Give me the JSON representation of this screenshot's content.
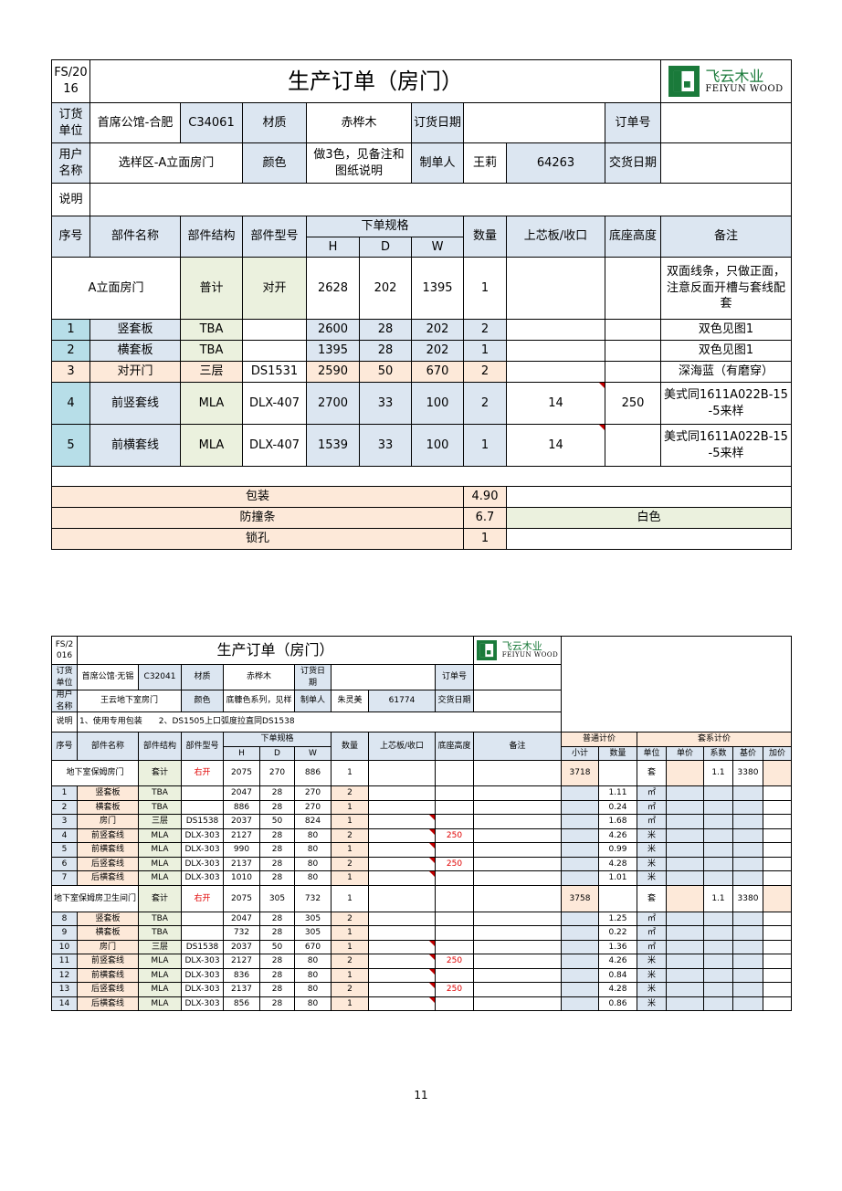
{
  "doc1": {
    "form_no": "FS/2016",
    "title": "生产订单（房门）",
    "logo": {
      "cn": "飞云木业",
      "en": "FEIYUN WOOD"
    },
    "info": {
      "customer_label": "订货单位",
      "customer": "首席公馆-合肥",
      "code": "C34061",
      "material_label": "材质",
      "material": "赤桦木",
      "order_date_label": "订货日期",
      "order_no_label": "订单号",
      "user_label": "用户名称",
      "user": "选样区-A立面房门",
      "color_label": "颜色",
      "color": "做3色，见备注和图纸说明",
      "maker_label": "制单人",
      "maker": "王莉",
      "maker_id": "64263",
      "delivery_label": "交货日期",
      "note_label": "说明"
    },
    "headers": {
      "seq": "序号",
      "part": "部件名称",
      "structure": "部件结构",
      "model": "部件型号",
      "spec": "下单规格",
      "h": "H",
      "d": "D",
      "w": "W",
      "qty": "数量",
      "core": "上芯板/收口",
      "base": "底座高度",
      "remark": "备注"
    },
    "main": {
      "name": "A立面房门",
      "structure": "普计",
      "model": "对开",
      "h": 2628,
      "d": 202,
      "w": 1395,
      "qty": 1,
      "remark": "双面线条，只做正面，注意反面开槽与套线配套"
    },
    "items": [
      {
        "seq": 1,
        "name": "竖套板",
        "structure": "TBA",
        "h": 2600,
        "d": 28,
        "w": 202,
        "qty": 2,
        "remark": "双色见图1"
      },
      {
        "seq": 2,
        "name": "横套板",
        "structure": "TBA",
        "h": 1395,
        "d": 28,
        "w": 202,
        "qty": 1,
        "remark": "双色见图1"
      },
      {
        "seq": 3,
        "name": "对开门",
        "structure": "三层",
        "model": "DS1531",
        "h": 2590,
        "d": 50,
        "w": 670,
        "qty": 2,
        "remark": "深海蓝（有磨穿）"
      },
      {
        "seq": 4,
        "name": "前竖套线",
        "structure": "MLA",
        "model": "DLX-407",
        "h": 2700,
        "d": 33,
        "w": 100,
        "qty": 2,
        "core": 14,
        "base": 250,
        "remark": "美式同1611A022B-15-5来样"
      },
      {
        "seq": 5,
        "name": "前横套线",
        "structure": "MLA",
        "model": "DLX-407",
        "h": 1539,
        "d": 33,
        "w": 100,
        "qty": 1,
        "core": 14,
        "remark": "美式同1611A022B-15-5来样"
      }
    ],
    "extras": [
      {
        "name": "包装",
        "qty": "4.90"
      },
      {
        "name": "防撞条",
        "qty": 6.7,
        "remark": "白色"
      },
      {
        "name": "锁孔",
        "qty": 1
      }
    ]
  },
  "doc2": {
    "form_no": "FS/2016",
    "title": "生产订单（房门）",
    "logo": {
      "cn": "飞云木业",
      "en": "FEIYUN WOOD"
    },
    "info": {
      "customer_label": "订货单位",
      "customer": "首席公馆·无锡",
      "code": "C32041",
      "material_label": "材质",
      "material": "赤桦木",
      "order_date_label": "订货日期",
      "order_no_label": "订单号",
      "user_label": "用户名称",
      "user": "王云地下室房门",
      "color_label": "颜色",
      "color": "底糠色系列，见样",
      "maker_label": "制单人",
      "maker": "朱灵美",
      "maker_id": "61774",
      "delivery_label": "交货日期",
      "note_label": "说明"
    },
    "notes": [
      "1、使用专用包装",
      "2、DS1505上口弧度拉直同DS1538"
    ],
    "headers": {
      "seq": "序号",
      "part": "部件名称",
      "structure": "部件结构",
      "model": "部件型号",
      "spec": "下单规格",
      "h": "H",
      "d": "D",
      "w": "W",
      "qty": "数量",
      "core": "上芯板/收口",
      "base": "底座高度",
      "remark": "备注",
      "normal": "普通计价",
      "subtotal": "小计",
      "count": "数量",
      "set": "套系计价",
      "unit": "单位",
      "price": "单价",
      "factor": "系数",
      "base_price": "基价",
      "markup": "加价"
    },
    "groups": [
      {
        "name": "地下室保姆房门",
        "structure": "套计",
        "model": "右开",
        "h": 2075,
        "d": 270,
        "w": 886,
        "qty": 1,
        "subtotal": 3718,
        "unit": "套",
        "factor": 1.1,
        "base_price": 3380,
        "items": [
          {
            "seq": 1,
            "name": "竖套板",
            "structure": "TBA",
            "h": 2047,
            "d": 28,
            "w": 270,
            "qty": 2,
            "count": 1.11,
            "unit": "㎡"
          },
          {
            "seq": 2,
            "name": "横套板",
            "structure": "TBA",
            "h": 886,
            "d": 28,
            "w": 270,
            "qty": 1,
            "count": 0.24,
            "unit": "㎡"
          },
          {
            "seq": 3,
            "name": "房门",
            "structure": "三层",
            "model": "DS1538",
            "h": 2037,
            "d": 50,
            "w": 824,
            "qty": 1,
            "count": 1.68,
            "unit": "㎡"
          },
          {
            "seq": 4,
            "name": "前竖套线",
            "structure": "MLA",
            "model": "DLX-303",
            "h": 2127,
            "d": 28,
            "w": 80,
            "qty": 2,
            "base": 250,
            "count": 4.26,
            "unit": "米"
          },
          {
            "seq": 5,
            "name": "前横套线",
            "structure": "MLA",
            "model": "DLX-303",
            "h": 990,
            "d": 28,
            "w": 80,
            "qty": 1,
            "count": 0.99,
            "unit": "米"
          },
          {
            "seq": 6,
            "name": "后竖套线",
            "structure": "MLA",
            "model": "DLX-303",
            "h": 2137,
            "d": 28,
            "w": 80,
            "qty": 2,
            "base": 250,
            "count": 4.28,
            "unit": "米"
          },
          {
            "seq": 7,
            "name": "后横套线",
            "structure": "MLA",
            "model": "DLX-303",
            "h": 1010,
            "d": 28,
            "w": 80,
            "qty": 1,
            "count": 1.01,
            "unit": "米"
          }
        ]
      },
      {
        "name": "地下室保姆房卫生间门",
        "structure": "套计",
        "model": "右开",
        "h": 2075,
        "d": 305,
        "w": 732,
        "qty": 1,
        "subtotal": 3758,
        "unit": "套",
        "factor": 1.1,
        "base_price": 3380,
        "items": [
          {
            "seq": 8,
            "name": "竖套板",
            "structure": "TBA",
            "h": 2047,
            "d": 28,
            "w": 305,
            "qty": 2,
            "count": 1.25,
            "unit": "㎡"
          },
          {
            "seq": 9,
            "name": "横套板",
            "structure": "TBA",
            "h": 732,
            "d": 28,
            "w": 305,
            "qty": 1,
            "count": 0.22,
            "unit": "㎡"
          },
          {
            "seq": 10,
            "name": "房门",
            "structure": "三层",
            "model": "DS1538",
            "h": 2037,
            "d": 50,
            "w": 670,
            "qty": 1,
            "count": 1.36,
            "unit": "㎡"
          },
          {
            "seq": 11,
            "name": "前竖套线",
            "structure": "MLA",
            "model": "DLX-303",
            "h": 2127,
            "d": 28,
            "w": 80,
            "qty": 2,
            "base": 250,
            "count": 4.26,
            "unit": "米"
          },
          {
            "seq": 12,
            "name": "前横套线",
            "structure": "MLA",
            "model": "DLX-303",
            "h": 836,
            "d": 28,
            "w": 80,
            "qty": 1,
            "count": 0.84,
            "unit": "米"
          },
          {
            "seq": 13,
            "name": "后竖套线",
            "structure": "MLA",
            "model": "DLX-303",
            "h": 2137,
            "d": 28,
            "w": 80,
            "qty": 2,
            "base": 250,
            "count": 4.28,
            "unit": "米"
          },
          {
            "seq": 14,
            "name": "后横套线",
            "structure": "MLA",
            "model": "DLX-303",
            "h": 856,
            "d": 28,
            "w": 80,
            "qty": 1,
            "count": 0.86,
            "unit": "米"
          }
        ]
      }
    ]
  },
  "page_number": "11"
}
